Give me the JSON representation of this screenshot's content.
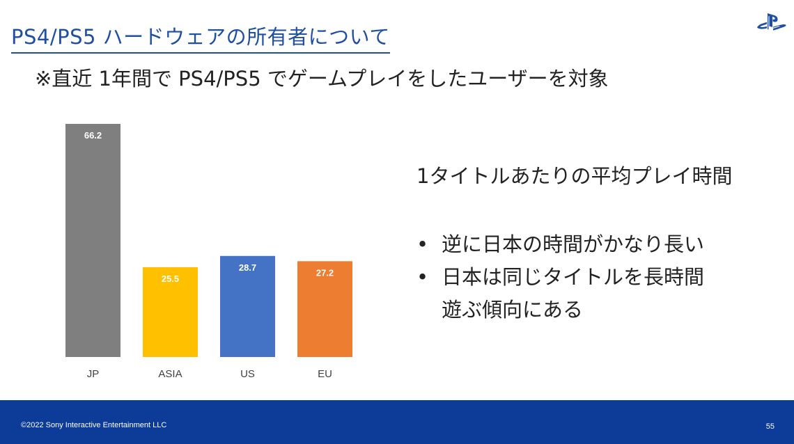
{
  "slide": {
    "title": "PS4/PS5 ハードウェアの所有者について",
    "subtitle": "※直近 1年間で PS4/PS5 でゲームプレイをしたユーザーを対象",
    "logo_icon": "playstation-logo-icon",
    "logo_color": "#1f4fa0"
  },
  "right_panel": {
    "heading": "1タイトルあたりの平均プレイ時間",
    "bullet_symbol": "•",
    "bullets": [
      {
        "lines": [
          "逆に日本の時間がかなり長い"
        ]
      },
      {
        "lines": [
          "日本は同じタイトルを長時間",
          "遊ぶ傾向にある"
        ]
      }
    ]
  },
  "chart_data": {
    "type": "bar",
    "categories": [
      "JP",
      "ASIA",
      "US",
      "EU"
    ],
    "values": [
      66.2,
      25.5,
      28.7,
      27.2
    ],
    "colors": [
      "#7f7f7f",
      "#ffc000",
      "#4472c4",
      "#ed7d31"
    ],
    "data_labels": [
      "66.2",
      "25.5",
      "28.7",
      "27.2"
    ],
    "grid": false,
    "legend": "none"
  },
  "footer": {
    "copyright": "©2022 Sony Interactive Entertainment LLC",
    "page_number": "55",
    "color": "#0c3c97"
  }
}
